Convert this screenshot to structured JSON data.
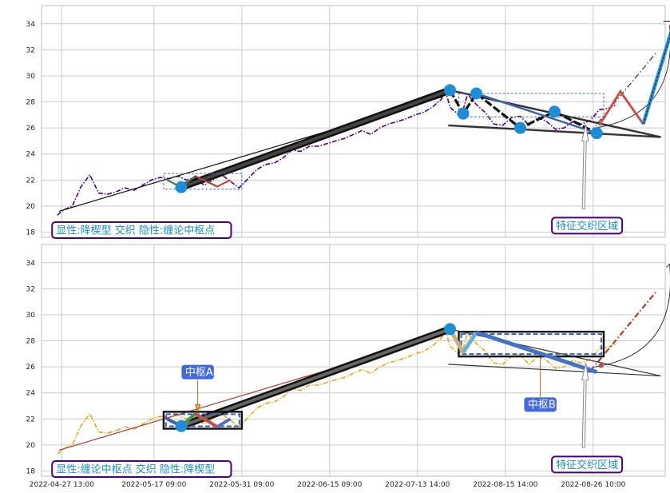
{
  "chart_data": [
    {
      "type": "line",
      "panel": "top",
      "ylim": [
        17.6,
        35.4
      ],
      "y_ticks": [
        "18",
        "20",
        "22",
        "24",
        "26",
        "28",
        "30",
        "32",
        "34"
      ],
      "price_line": {
        "color": "#4b0082",
        "style": "dash-dot",
        "points": [
          [
            0.3,
            19.3
          ],
          [
            1,
            19.7
          ],
          [
            2,
            20
          ],
          [
            3,
            21.5
          ],
          [
            4,
            22.4
          ],
          [
            5,
            21
          ],
          [
            6,
            20.9
          ],
          [
            7,
            21.1
          ],
          [
            8,
            21.4
          ],
          [
            9,
            21.2
          ],
          [
            10,
            21.6
          ],
          [
            11,
            22
          ],
          [
            12,
            22.2
          ],
          [
            13,
            22.1
          ],
          [
            14,
            22.3
          ],
          [
            15,
            22
          ],
          [
            16,
            22.2
          ],
          [
            17,
            21.6
          ],
          [
            18,
            22
          ],
          [
            19,
            22.4
          ],
          [
            20,
            21.9
          ],
          [
            21,
            21.4
          ],
          [
            22,
            22.1
          ],
          [
            23,
            22.8
          ],
          [
            24,
            23.2
          ],
          [
            25,
            23.3
          ],
          [
            26,
            23.7
          ],
          [
            27,
            24.3
          ],
          [
            28,
            24.2
          ],
          [
            29,
            24.6
          ],
          [
            30,
            24.6
          ],
          [
            31,
            24.8
          ],
          [
            32,
            25
          ],
          [
            33,
            25.2
          ],
          [
            34,
            25.5
          ],
          [
            35,
            25.8
          ],
          [
            36,
            25.5
          ],
          [
            37,
            26
          ],
          [
            38,
            26.3
          ],
          [
            39,
            26.5
          ],
          [
            40,
            26.7
          ],
          [
            41,
            27
          ],
          [
            42,
            27.2
          ],
          [
            43,
            27.6
          ],
          [
            44,
            28.2
          ],
          [
            44.5,
            28.8
          ],
          [
            45,
            27.6
          ],
          [
            46,
            27
          ],
          [
            46.5,
            27.4
          ],
          [
            47,
            28.6
          ],
          [
            48,
            27.8
          ],
          [
            49,
            27.2
          ],
          [
            50,
            26.3
          ],
          [
            51,
            26.2
          ],
          [
            52,
            26.8
          ],
          [
            53,
            26.9
          ],
          [
            54,
            26.2
          ],
          [
            55,
            26.8
          ],
          [
            56,
            26.5
          ],
          [
            57,
            25.9
          ],
          [
            58,
            26
          ],
          [
            59,
            26.5
          ],
          [
            60,
            26.3
          ],
          [
            61,
            26.6
          ],
          [
            62,
            27.4
          ],
          [
            63,
            27.5
          ],
          [
            64,
            27.8
          ]
        ]
      },
      "markers": [
        [
          14.4,
          21.45
        ],
        [
          45,
          28.9
        ],
        [
          46.5,
          27.1
        ],
        [
          48,
          28.65
        ],
        [
          53,
          26
        ],
        [
          56.9,
          27.25
        ],
        [
          61.7,
          25.6
        ]
      ],
      "rect_zones": [
        {
          "x": [
            12.4,
            21.3
          ],
          "y": [
            21.3,
            22.5
          ],
          "style": "thin-dashed",
          "color": "#4a6fa5"
        },
        {
          "x": [
            46,
            62.5
          ],
          "y": [
            26.85,
            28.65
          ],
          "style": "thin-dashed",
          "color": "#4a6fa5"
        }
      ],
      "annotations": [
        {
          "text": "显性:降楔型 交织 隐性:缠论中枢点",
          "color": "#1e90c0",
          "box": "#4b0082",
          "at": [
            -0.3,
            18.15
          ],
          "fontsize": 13
        },
        {
          "text": "特征交织区域",
          "color": "#1e90c0",
          "box": "#4b0082",
          "at": [
            56.6,
            18.5
          ],
          "fontsize": 13
        }
      ],
      "ref_line_label": "",
      "grid": true
    },
    {
      "type": "line",
      "panel": "bottom",
      "ylim": [
        17.6,
        35.4
      ],
      "y_ticks": [
        "18",
        "20",
        "22",
        "24",
        "26",
        "28",
        "30",
        "32",
        "34"
      ],
      "x_tick_labels": [
        "2022-04-27 13:00",
        "2022-05-17 09:00",
        "2022-05-31 09:00",
        "2022-06-15 09:00",
        "2022-07-13 14:00",
        "2022-08-15 14:00",
        "2022-08-26 10:00"
      ],
      "price_line": {
        "color": "#e6a817",
        "style": "dash-dot",
        "points": [
          [
            0.3,
            19.3
          ],
          [
            1,
            19.7
          ],
          [
            2,
            20
          ],
          [
            3,
            21.5
          ],
          [
            4,
            22.4
          ],
          [
            5,
            21
          ],
          [
            6,
            20.9
          ],
          [
            7,
            21.1
          ],
          [
            8,
            21.4
          ],
          [
            9,
            21.2
          ],
          [
            10,
            21.6
          ],
          [
            11,
            22
          ],
          [
            12,
            22.2
          ],
          [
            13,
            22.1
          ],
          [
            14,
            22.3
          ],
          [
            15,
            22
          ],
          [
            16,
            22.2
          ],
          [
            17,
            21.6
          ],
          [
            18,
            22
          ],
          [
            19,
            22.4
          ],
          [
            20,
            21.9
          ],
          [
            21,
            21.4
          ],
          [
            22,
            22.1
          ],
          [
            23,
            22.8
          ],
          [
            24,
            23.2
          ],
          [
            25,
            23.3
          ],
          [
            26,
            23.7
          ],
          [
            27,
            24.3
          ],
          [
            28,
            24.2
          ],
          [
            29,
            24.6
          ],
          [
            30,
            24.6
          ],
          [
            31,
            24.8
          ],
          [
            32,
            25
          ],
          [
            33,
            25.2
          ],
          [
            34,
            25.5
          ],
          [
            35,
            25.8
          ],
          [
            36,
            25.5
          ],
          [
            37,
            26
          ],
          [
            38,
            26.3
          ],
          [
            39,
            26.5
          ],
          [
            40,
            26.7
          ],
          [
            41,
            27
          ],
          [
            42,
            27.2
          ],
          [
            43,
            27.6
          ],
          [
            44,
            28.2
          ],
          [
            44.5,
            28.8
          ],
          [
            45,
            27.6
          ],
          [
            46,
            27
          ],
          [
            46.5,
            27.4
          ],
          [
            47,
            28.6
          ],
          [
            48,
            27.8
          ],
          [
            49,
            27.2
          ],
          [
            50,
            26.3
          ],
          [
            51,
            26.2
          ],
          [
            52,
            26.8
          ],
          [
            53,
            26.9
          ],
          [
            54,
            26.2
          ],
          [
            55,
            26.8
          ],
          [
            56,
            26.5
          ],
          [
            57,
            25.9
          ],
          [
            58,
            26
          ],
          [
            59,
            26.5
          ],
          [
            60,
            26.3
          ],
          [
            61,
            26.6
          ],
          [
            62,
            27.4
          ],
          [
            63,
            27.5
          ],
          [
            64,
            27.8
          ]
        ]
      },
      "markers": [
        [
          14.4,
          21.45
        ],
        [
          45,
          28.9
        ]
      ],
      "rect_zones": [
        {
          "x": [
            12.4,
            21.3
          ],
          "y": [
            21.25,
            22.55
          ],
          "style": "thick",
          "color": "#111111"
        },
        {
          "x": [
            46,
            62.5
          ],
          "y": [
            26.8,
            28.7
          ],
          "style": "thick",
          "color": "#111111"
        }
      ],
      "annotations": [
        {
          "text": "中枢A",
          "color": "#ffffff",
          "box": "#4169e1",
          "at": [
            14.4,
            25.6
          ],
          "fontsize": 12
        },
        {
          "text": "中枢B",
          "color": "#ffffff",
          "box": "#4169e1",
          "at": [
            53.4,
            23.1
          ],
          "fontsize": 12
        },
        {
          "text": "显性:缠论中枢点 交织 隐性:降楔型",
          "color": "#1e90c0",
          "box": "#4b0082",
          "at": [
            -0.3,
            18.15
          ],
          "fontsize": 13
        },
        {
          "text": "特征交织区域",
          "color": "#1e90c0",
          "box": "#4b0082",
          "at": [
            56.6,
            18.5
          ],
          "fontsize": 13
        }
      ],
      "grid": true
    }
  ],
  "colors": {
    "grid": "#cccccc",
    "panel_bg": "#ffffff",
    "trend": "#111111",
    "blue_marker": "#1f8dd6",
    "red_zig": "#e8534a",
    "steel": "#3b5fa8",
    "dark_wedge": "#333333"
  }
}
